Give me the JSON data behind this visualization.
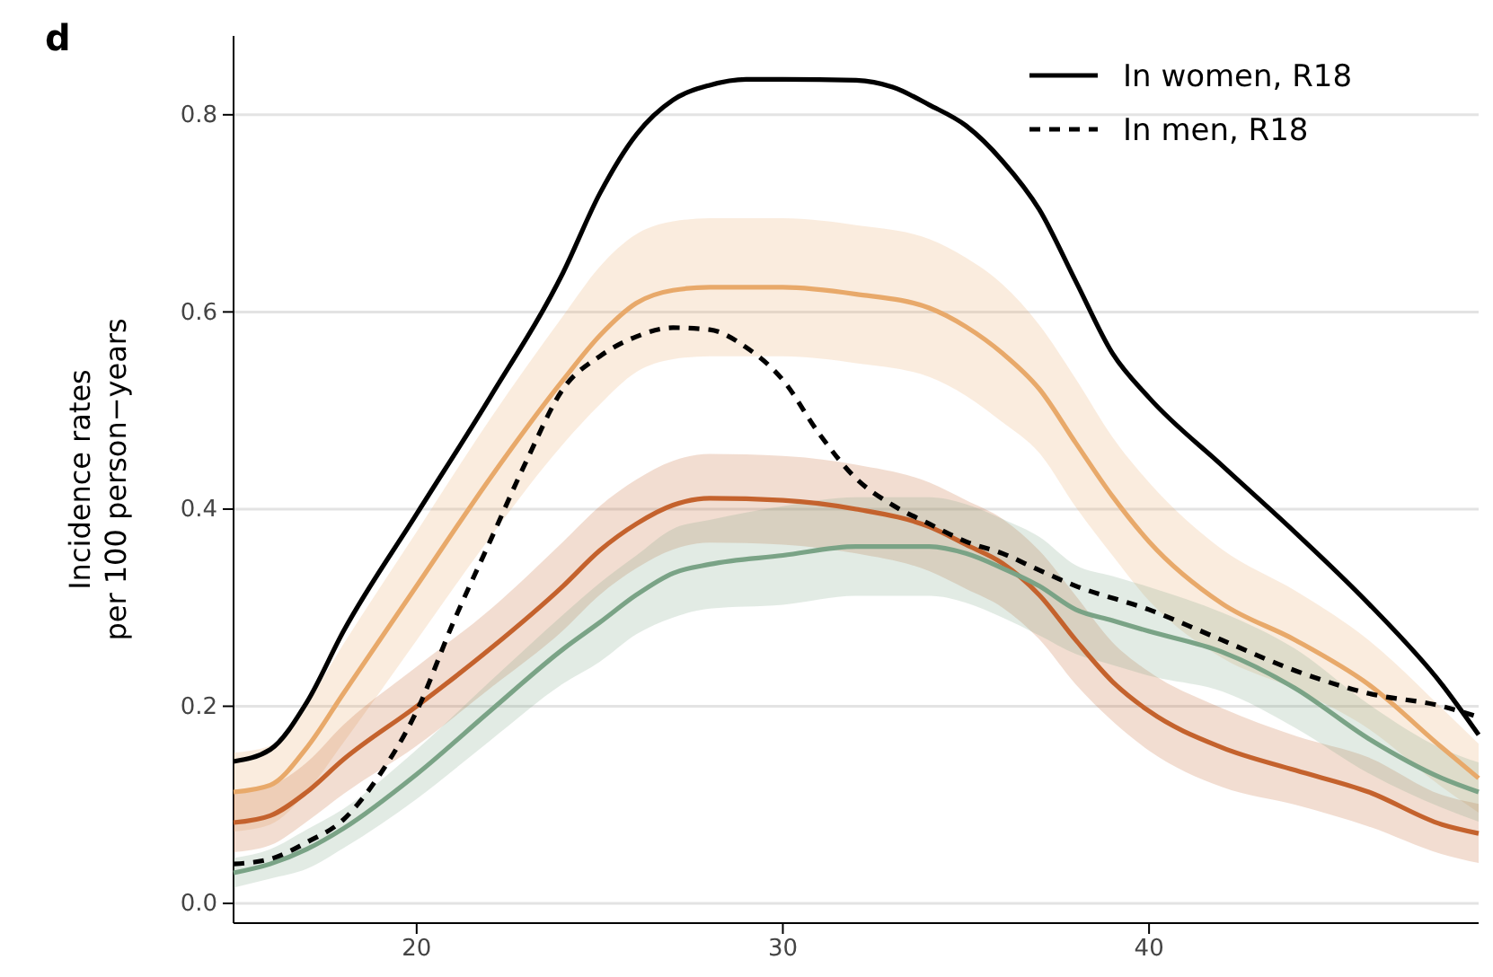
{
  "chart_data": {
    "type": "line",
    "title": "d",
    "ylabel": "Incidence rates\nper 100 person−years",
    "xlim": [
      15,
      49
    ],
    "xticks": [
      20,
      30,
      40
    ],
    "ylim": [
      -0.02,
      0.88
    ],
    "yticks": [
      {
        "value": 0,
        "label": "0.0"
      },
      0.2,
      0.4,
      0.6,
      0.8
    ],
    "grid": "y",
    "legend": "top right",
    "line_style": "solid",
    "marker": "none",
    "series": [
      {
        "color": "#e8a96a",
        "x": [
          15,
          16,
          17,
          18,
          20,
          22,
          24,
          25,
          26,
          27,
          28,
          30,
          32,
          34,
          35,
          36,
          37,
          38,
          39,
          40,
          42,
          44,
          46,
          48,
          49
        ],
        "values": [
          0.113,
          0.12,
          0.158,
          0.213,
          0.322,
          0.431,
          0.531,
          0.576,
          0.609,
          0.622,
          0.625,
          0.625,
          0.618,
          0.604,
          0.585,
          0.558,
          0.522,
          0.467,
          0.413,
          0.367,
          0.304,
          0.267,
          0.222,
          0.158,
          0.127
        ],
        "lower": [
          0.073,
          0.08,
          0.113,
          0.163,
          0.267,
          0.371,
          0.466,
          0.506,
          0.539,
          0.552,
          0.555,
          0.555,
          0.548,
          0.534,
          0.515,
          0.488,
          0.457,
          0.402,
          0.353,
          0.307,
          0.249,
          0.217,
          0.177,
          0.118,
          0.092
        ],
        "upper": [
          0.153,
          0.16,
          0.203,
          0.263,
          0.377,
          0.491,
          0.596,
          0.646,
          0.679,
          0.692,
          0.695,
          0.695,
          0.688,
          0.674,
          0.655,
          0.628,
          0.587,
          0.532,
          0.473,
          0.427,
          0.359,
          0.317,
          0.267,
          0.198,
          0.162
        ]
      },
      {
        "color": "#c4622d",
        "x": [
          15,
          16,
          17,
          18,
          20,
          22,
          24,
          25,
          26,
          27,
          28,
          30,
          32,
          34,
          35,
          36,
          37,
          38,
          39,
          40,
          42,
          44,
          46,
          48,
          49
        ],
        "values": [
          0.082,
          0.089,
          0.113,
          0.146,
          0.2,
          0.258,
          0.322,
          0.358,
          0.385,
          0.404,
          0.411,
          0.409,
          0.4,
          0.382,
          0.364,
          0.345,
          0.313,
          0.267,
          0.225,
          0.195,
          0.158,
          0.135,
          0.113,
          0.08,
          0.071
        ],
        "lower": [
          0.052,
          0.059,
          0.083,
          0.111,
          0.16,
          0.218,
          0.277,
          0.313,
          0.34,
          0.359,
          0.366,
          0.364,
          0.355,
          0.337,
          0.319,
          0.3,
          0.268,
          0.222,
          0.185,
          0.155,
          0.118,
          0.1,
          0.078,
          0.05,
          0.041
        ],
        "upper": [
          0.112,
          0.119,
          0.143,
          0.181,
          0.24,
          0.298,
          0.367,
          0.403,
          0.43,
          0.449,
          0.456,
          0.454,
          0.445,
          0.427,
          0.409,
          0.39,
          0.358,
          0.312,
          0.265,
          0.235,
          0.198,
          0.17,
          0.148,
          0.11,
          0.101
        ]
      },
      {
        "color": "#7aa386",
        "x": [
          15,
          16,
          17,
          18,
          20,
          22,
          24,
          25,
          26,
          27,
          28,
          30,
          32,
          34,
          35,
          36,
          37,
          38,
          39,
          40,
          42,
          44,
          46,
          48,
          49
        ],
        "values": [
          0.031,
          0.04,
          0.055,
          0.076,
          0.131,
          0.195,
          0.258,
          0.285,
          0.313,
          0.335,
          0.344,
          0.353,
          0.362,
          0.362,
          0.355,
          0.34,
          0.322,
          0.298,
          0.287,
          0.276,
          0.255,
          0.218,
          0.167,
          0.127,
          0.113
        ],
        "lower": [
          0.016,
          0.025,
          0.035,
          0.056,
          0.106,
          0.165,
          0.223,
          0.245,
          0.273,
          0.29,
          0.299,
          0.303,
          0.312,
          0.312,
          0.305,
          0.29,
          0.272,
          0.253,
          0.242,
          0.231,
          0.215,
          0.178,
          0.132,
          0.097,
          0.083
        ],
        "upper": [
          0.046,
          0.055,
          0.075,
          0.096,
          0.156,
          0.225,
          0.293,
          0.325,
          0.353,
          0.38,
          0.389,
          0.403,
          0.412,
          0.412,
          0.405,
          0.39,
          0.372,
          0.343,
          0.332,
          0.321,
          0.295,
          0.258,
          0.202,
          0.157,
          0.143
        ]
      },
      {
        "name": "In women, R18",
        "color": "#000000",
        "x": [
          15,
          16,
          17,
          18,
          20,
          22,
          24,
          25,
          26,
          27,
          28,
          29,
          30,
          32,
          33,
          34,
          35,
          36,
          37,
          38,
          39,
          40,
          42,
          44,
          46,
          48,
          49
        ],
        "values": [
          0.144,
          0.156,
          0.204,
          0.276,
          0.395,
          0.513,
          0.64,
          0.72,
          0.78,
          0.815,
          0.83,
          0.836,
          0.836,
          0.835,
          0.828,
          0.81,
          0.789,
          0.753,
          0.704,
          0.631,
          0.558,
          0.513,
          0.444,
          0.376,
          0.304,
          0.222,
          0.171
        ]
      },
      {
        "name": "In men, R18",
        "color": "#000000",
        "line_style": "dashed",
        "x": [
          15,
          16,
          17,
          18,
          19,
          20,
          21,
          22,
          23,
          24,
          25,
          26,
          27,
          28,
          29,
          30,
          31,
          32,
          33,
          34,
          35,
          36,
          37,
          38,
          40,
          42,
          44,
          46,
          48,
          49
        ],
        "values": [
          0.04,
          0.045,
          0.062,
          0.085,
          0.131,
          0.195,
          0.285,
          0.367,
          0.449,
          0.522,
          0.555,
          0.575,
          0.584,
          0.582,
          0.564,
          0.531,
          0.476,
          0.431,
          0.404,
          0.385,
          0.367,
          0.355,
          0.338,
          0.322,
          0.298,
          0.267,
          0.236,
          0.213,
          0.2,
          0.189
        ]
      }
    ]
  }
}
